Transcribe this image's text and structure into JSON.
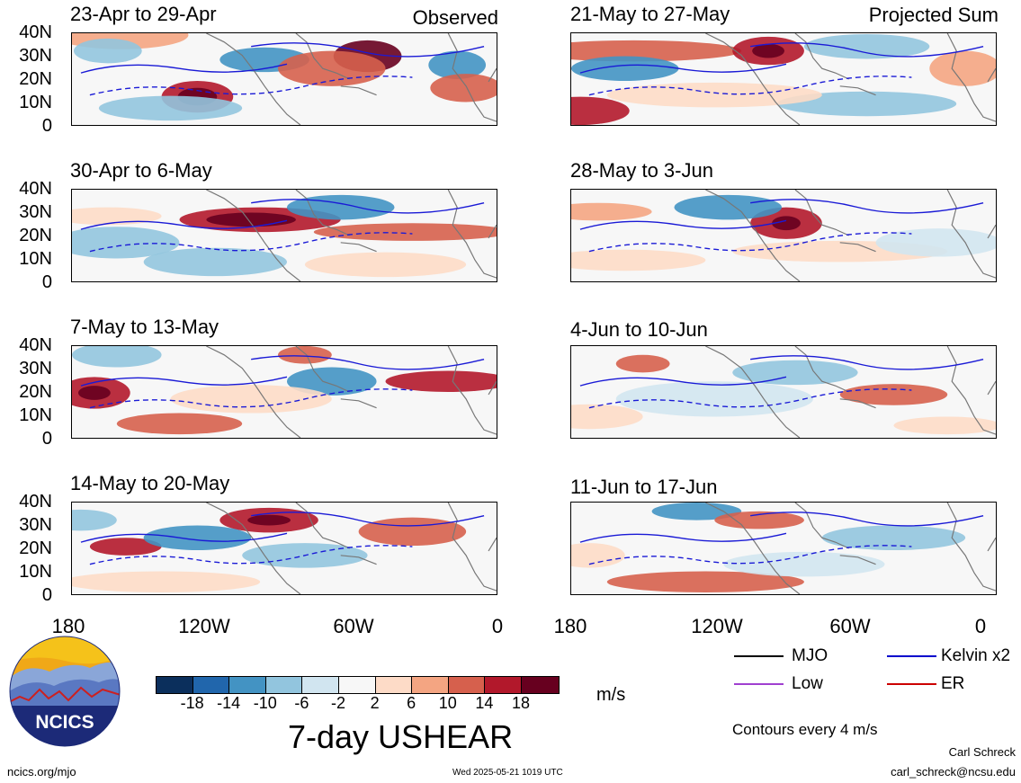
{
  "header": {
    "observed_label": "Observed",
    "projected_label": "Projected Sum"
  },
  "panels": [
    {
      "title": "23-Apr to 29-Apr"
    },
    {
      "title": "21-May to 27-May"
    },
    {
      "title": "30-Apr to 6-May"
    },
    {
      "title": "28-May to 3-Jun"
    },
    {
      "title": "7-May to 13-May"
    },
    {
      "title": "4-Jun to 10-Jun"
    },
    {
      "title": "14-May to 20-May"
    },
    {
      "title": "11-Jun to 17-Jun"
    }
  ],
  "axes": {
    "y_ticks": [
      "40N",
      "30N",
      "20N",
      "10N",
      "0"
    ],
    "x_ticks": [
      "180",
      "120W",
      "60W",
      "0"
    ]
  },
  "colorbar": {
    "colors": [
      "#0b2f5c",
      "#2166ac",
      "#4393c3",
      "#92c5de",
      "#d1e5f0",
      "#f7f7f7",
      "#fddbc7",
      "#f4a582",
      "#d6604d",
      "#b2182b",
      "#67001f"
    ],
    "tick_labels": [
      "-18",
      "-14",
      "-10",
      "-6",
      "-2",
      "2",
      "6",
      "10",
      "14",
      "18"
    ],
    "units": "m/s"
  },
  "main_title": "7-day USHEAR",
  "legend": {
    "items": [
      {
        "label": "MJO",
        "color": "#000000"
      },
      {
        "label": "Kelvin x2",
        "color": "#0000cc"
      },
      {
        "label": "Low",
        "color": "#a040d0"
      },
      {
        "label": "ER",
        "color": "#cc0000"
      }
    ],
    "contour_note": "Contours every 4 m/s"
  },
  "logo": {
    "text": "NCICS"
  },
  "footer": {
    "url": "ncics.org/mjo",
    "timestamp": "Wed 2025-05-21 1019 UTC",
    "author": "Carl Schreck",
    "email": "carl_schreck@ncsu.edu"
  }
}
